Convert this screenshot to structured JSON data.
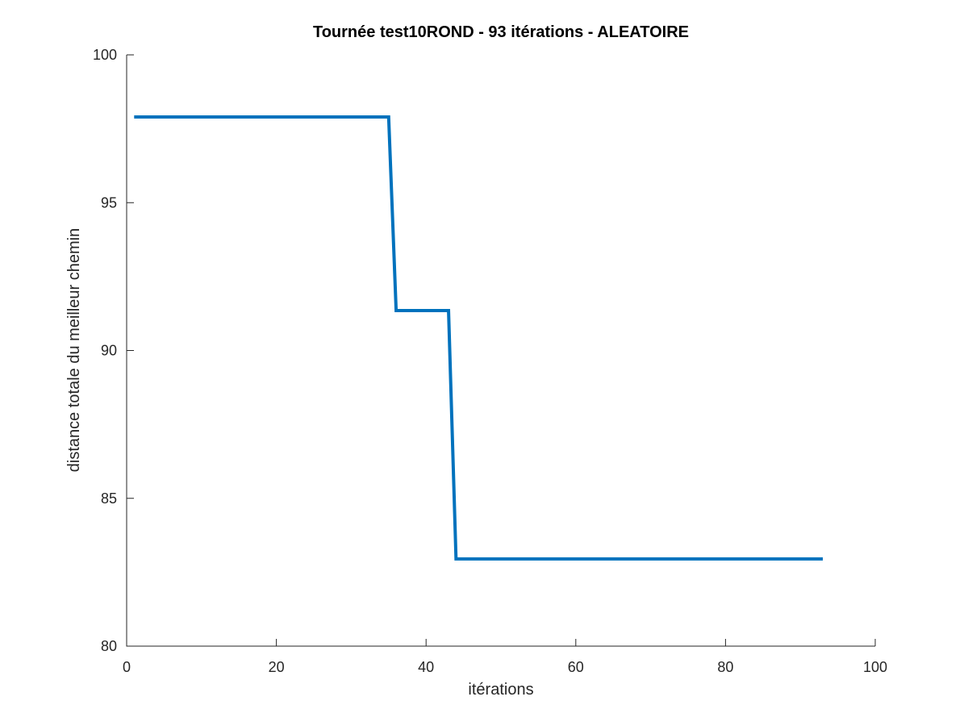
{
  "chart_data": {
    "type": "line",
    "title": "Tournée test10ROND - 93 itérations - ALEATOIRE",
    "xlabel": "itérations",
    "ylabel": "distance totale du meilleur chemin",
    "xlim": [
      0,
      100
    ],
    "ylim": [
      80,
      100
    ],
    "xticks": [
      0,
      20,
      40,
      60,
      80,
      100
    ],
    "yticks": [
      80,
      85,
      90,
      95,
      100
    ],
    "grid": false,
    "series": [
      {
        "color": "#0072BD",
        "x": [
          1,
          35,
          36,
          43,
          44,
          93
        ],
        "y": [
          97.9,
          97.9,
          91.35,
          91.35,
          82.95,
          82.95
        ]
      }
    ]
  }
}
